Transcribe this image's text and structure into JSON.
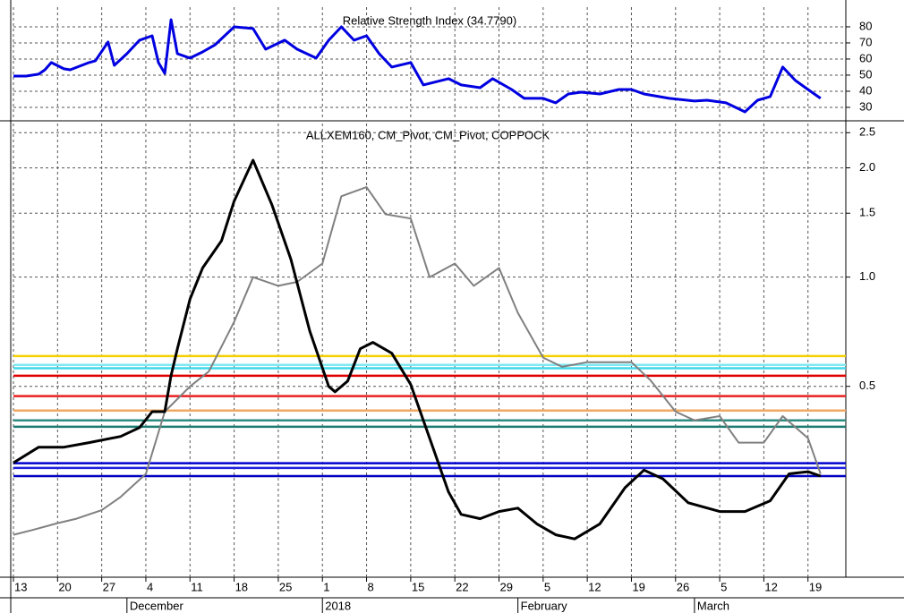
{
  "chart_data": [
    {
      "type": "line",
      "title": "Relative Strength Index (34.7790)",
      "color": "#0000e0",
      "x": [
        0,
        2,
        4,
        5,
        6,
        8,
        9,
        12,
        13,
        15,
        16,
        18,
        20,
        22,
        23,
        24,
        25,
        26,
        28,
        30,
        32,
        35,
        38,
        40,
        43,
        45,
        48,
        50,
        52,
        54,
        56,
        58,
        60,
        63,
        65,
        69,
        71,
        74,
        76,
        79,
        81,
        84,
        86,
        88,
        90,
        93,
        96,
        98,
        100,
        104,
        108,
        110,
        113,
        116,
        118,
        120,
        122,
        124,
        126,
        128
      ],
      "values": [
        49.4,
        49.4,
        50.6,
        53.3,
        57.8,
        53.9,
        53.3,
        57.8,
        58.9,
        70.6,
        56.1,
        63.3,
        71.7,
        74.4,
        57.8,
        51.1,
        84.4,
        63.3,
        60.6,
        64.4,
        68.9,
        80,
        78.9,
        66.1,
        71.7,
        66.1,
        60.6,
        71.7,
        80,
        71.7,
        74.4,
        63.3,
        55,
        57.8,
        43.9,
        47.8,
        43.9,
        42.2,
        47.8,
        41.1,
        35.6,
        35.6,
        32.8,
        38.3,
        39.4,
        38.3,
        41.1,
        41.1,
        38.3,
        35.6,
        33.9,
        34.4,
        32.8,
        27.2,
        34.4,
        36.7,
        55,
        46.7,
        41.1,
        35.6
      ],
      "xlim": [
        0,
        132
      ],
      "ylim": [
        23.3,
        92.2
      ],
      "yticks": [
        30,
        40,
        50,
        60,
        70,
        80
      ],
      "grid": true
    },
    {
      "type": "line",
      "title": "ALLXEM160, CM_Pivot, CM_Pivot, COPPOCK",
      "log_scale": true,
      "grid": true,
      "xlim": [
        0,
        132
      ],
      "ylim": [
        0.149,
        2.65
      ],
      "yticks": [
        0.5,
        {
          "value": 1.0,
          "label": "1.0"
        },
        1.5,
        {
          "value": 2.0,
          "label": "2.0"
        },
        2.5
      ],
      "xticks": [
        {
          "value": 0,
          "label": "13"
        },
        {
          "value": 7,
          "label": "20"
        },
        {
          "value": 14,
          "label": "27"
        },
        {
          "value": 21,
          "label": "4"
        },
        {
          "value": 28,
          "label": "11"
        },
        {
          "value": 35,
          "label": "18"
        },
        {
          "value": 42,
          "label": "25"
        },
        {
          "value": 49,
          "label": "1"
        },
        {
          "value": 56,
          "label": "8"
        },
        {
          "value": 63,
          "label": "15"
        },
        {
          "value": 70,
          "label": "22"
        },
        {
          "value": 77,
          "label": "29"
        },
        {
          "value": 84,
          "label": "5"
        },
        {
          "value": 91,
          "label": "12"
        },
        {
          "value": 98,
          "label": "19"
        },
        {
          "value": 105,
          "label": "26"
        },
        {
          "value": 112,
          "label": "5"
        },
        {
          "value": 119,
          "label": "12"
        },
        {
          "value": 126,
          "label": "19"
        }
      ],
      "month_labels": [
        {
          "value": 18,
          "label": "December"
        },
        {
          "value": 49,
          "label": "2018"
        },
        {
          "value": 80,
          "label": "February"
        },
        {
          "value": 108,
          "label": "March"
        }
      ],
      "series": [
        {
          "color": "#808080",
          "x": [
            0,
            3,
            7,
            10,
            14,
            17,
            21,
            24,
            28,
            31,
            35,
            38,
            42,
            45,
            49,
            52,
            56,
            59,
            63,
            66,
            70,
            73,
            77,
            80,
            84,
            87,
            91,
            94,
            98,
            101,
            105,
            108,
            112,
            115,
            119,
            122,
            126,
            128
          ],
          "values": [
            0.195,
            0.201,
            0.21,
            0.216,
            0.228,
            0.248,
            0.287,
            0.426,
            0.5,
            0.55,
            0.753,
            1.0,
            0.946,
            0.97,
            1.09,
            1.67,
            1.77,
            1.49,
            1.45,
            1.0,
            1.09,
            0.946,
            1.06,
            0.797,
            0.6,
            0.566,
            0.583,
            0.583,
            0.583,
            0.52,
            0.426,
            0.403,
            0.414,
            0.35,
            0.35,
            0.414,
            0.36,
            0.287
          ]
        },
        {
          "color": "#000000",
          "x": [
            0,
            4,
            8,
            12,
            17,
            20,
            22,
            24,
            25,
            26,
            28,
            30,
            33,
            35,
            38,
            41,
            44,
            47,
            50,
            51,
            53,
            55,
            57,
            60,
            63,
            66,
            69,
            71,
            74,
            77,
            80,
            83,
            86,
            89,
            93,
            97,
            100,
            103,
            107,
            112,
            116,
            120,
            123,
            126,
            128
          ],
          "values": [
            0.308,
            0.34,
            0.34,
            0.35,
            0.364,
            0.385,
            0.426,
            0.426,
            0.535,
            0.635,
            0.87,
            1.06,
            1.26,
            1.62,
            2.1,
            1.58,
            1.12,
            0.71,
            0.5,
            0.483,
            0.517,
            0.635,
            0.661,
            0.617,
            0.506,
            0.36,
            0.256,
            0.222,
            0.216,
            0.226,
            0.231,
            0.209,
            0.195,
            0.19,
            0.209,
            0.263,
            0.294,
            0.278,
            0.239,
            0.226,
            0.226,
            0.242,
            0.287,
            0.291,
            0.283
          ]
        }
      ],
      "pivot_lines": [
        {
          "value": 0.606,
          "color": "#f5d000"
        },
        {
          "value": 0.573,
          "color": "#7fe8f0"
        },
        {
          "value": 0.561,
          "color": "#40d8e8"
        },
        {
          "value": 0.535,
          "color": "#e00000"
        },
        {
          "value": 0.47,
          "color": "#e82020"
        },
        {
          "value": 0.429,
          "color": "#f0a860"
        },
        {
          "value": 0.403,
          "color": "#2e8b80"
        },
        {
          "value": 0.387,
          "color": "#1e7a70"
        },
        {
          "value": 0.307,
          "color": "#0000d0"
        },
        {
          "value": 0.298,
          "color": "#2020e0"
        },
        {
          "value": 0.283,
          "color": "#0000c0"
        }
      ]
    }
  ]
}
